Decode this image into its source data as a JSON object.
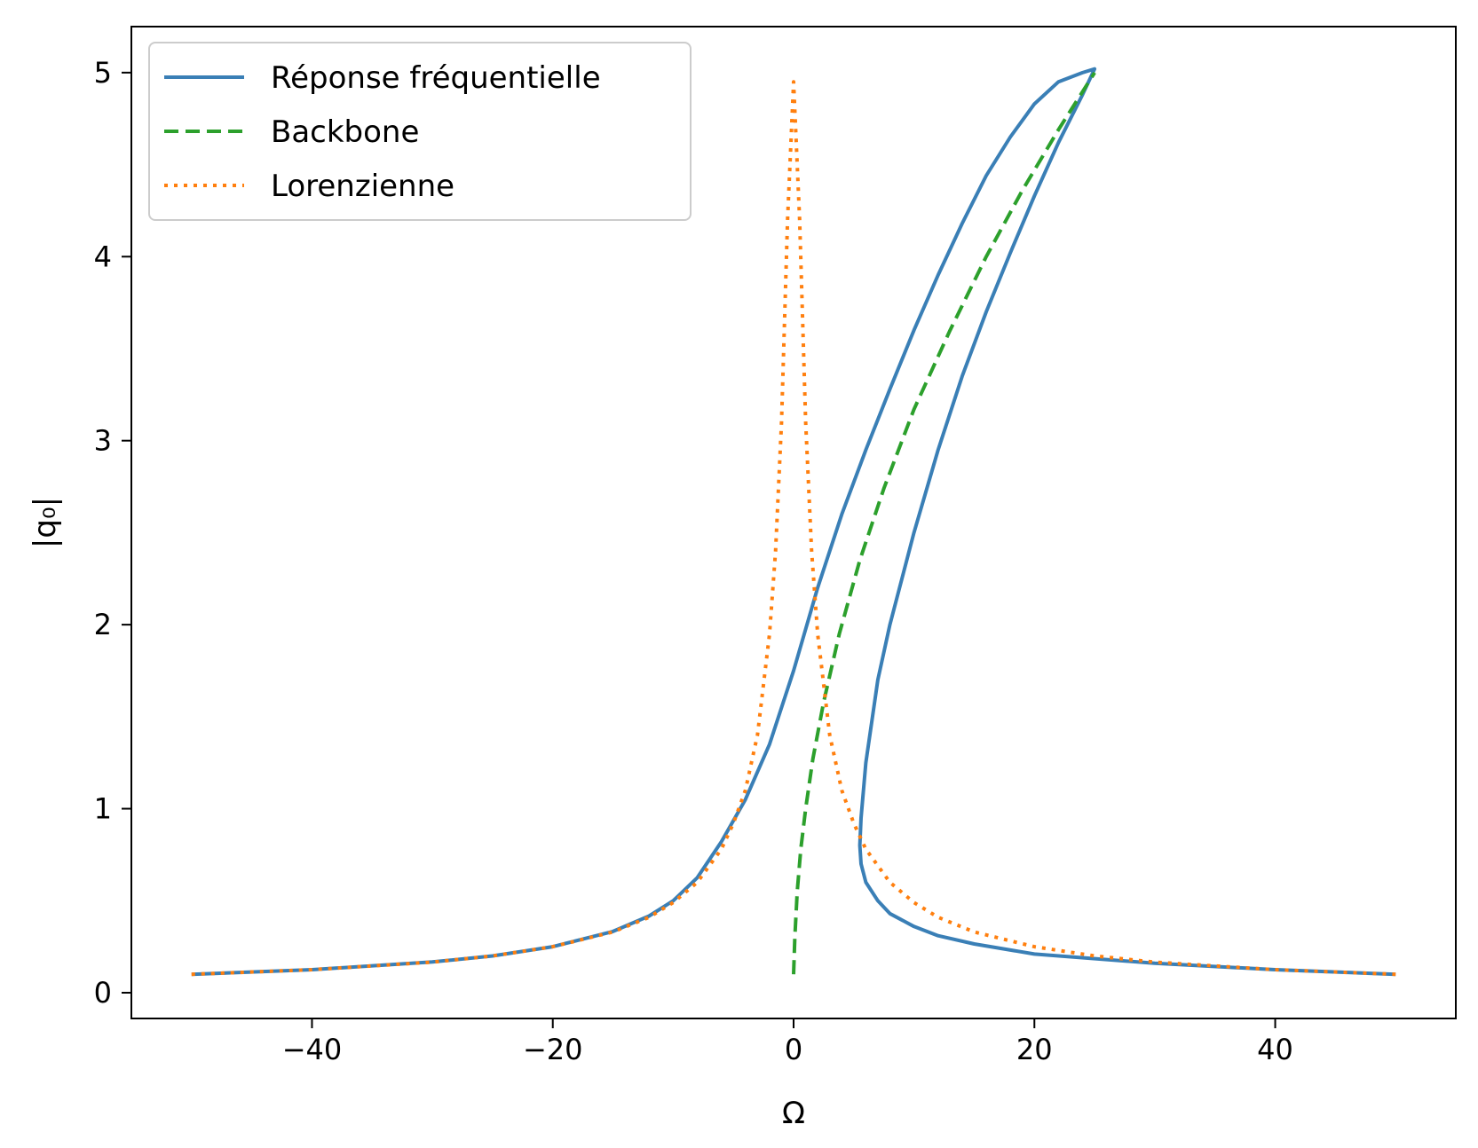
{
  "chart_data": {
    "type": "line",
    "title": "",
    "xlabel": "Ω",
    "ylabel": "|q₀|",
    "xlim": [
      -55,
      55
    ],
    "ylim": [
      -0.14,
      5.25
    ],
    "xticks": [
      -40,
      -20,
      0,
      20,
      40
    ],
    "yticks": [
      0,
      1,
      2,
      3,
      4,
      5
    ],
    "xtick_labels": [
      "−40",
      "−20",
      "0",
      "20",
      "40"
    ],
    "ytick_labels": [
      "0",
      "1",
      "2",
      "3",
      "4",
      "5"
    ],
    "grid": false,
    "legend": {
      "position": "top-left"
    },
    "series": [
      {
        "name": "Réponse fréquentielle",
        "style": "solid",
        "color": "#3a7fb6",
        "x": [
          -50,
          -40,
          -30,
          -25,
          -20,
          -15,
          -12,
          -10,
          -8,
          -6,
          -4,
          -2,
          0,
          2,
          4,
          6,
          8,
          10,
          12,
          14,
          16,
          18,
          20,
          22,
          24,
          25,
          24,
          22,
          20,
          18,
          16,
          14,
          12,
          10,
          8,
          7,
          6,
          5.6,
          5.5,
          5.6,
          6,
          7,
          8,
          10,
          12,
          15,
          20,
          30,
          40,
          50
        ],
        "y": [
          0.1,
          0.125,
          0.167,
          0.2,
          0.25,
          0.333,
          0.417,
          0.5,
          0.625,
          0.82,
          1.05,
          1.35,
          1.75,
          2.2,
          2.6,
          2.95,
          3.28,
          3.6,
          3.9,
          4.18,
          4.44,
          4.65,
          4.83,
          4.95,
          5.0,
          5.02,
          4.88,
          4.62,
          4.33,
          4.02,
          3.7,
          3.35,
          2.95,
          2.5,
          2.0,
          1.7,
          1.25,
          0.95,
          0.8,
          0.7,
          0.6,
          0.5,
          0.43,
          0.36,
          0.31,
          0.265,
          0.21,
          0.16,
          0.125,
          0.1
        ]
      },
      {
        "name": "Backbone",
        "style": "dashed",
        "color": "#2ca02c",
        "x": [
          0,
          0.1,
          0.3,
          0.6,
          1.0,
          1.6,
          2.5,
          3.8,
          5.5,
          7.5,
          10,
          13,
          16,
          19,
          22,
          25
        ],
        "y": [
          0.1,
          0.3,
          0.55,
          0.78,
          1.0,
          1.27,
          1.58,
          1.95,
          2.35,
          2.74,
          3.17,
          3.6,
          4.0,
          4.36,
          4.69,
          5.0
        ]
      },
      {
        "name": "Lorenzienne",
        "style": "dotted",
        "color": "#ff7f0e",
        "x": [
          -50,
          -40,
          -30,
          -25,
          -20,
          -15,
          -12,
          -10,
          -8,
          -6,
          -5,
          -4,
          -3,
          -2,
          -1.5,
          -1,
          -0.5,
          0,
          0.5,
          1,
          1.5,
          2,
          3,
          4,
          5,
          6,
          8,
          10,
          12,
          15,
          20,
          25,
          30,
          40,
          50
        ],
        "y": [
          0.1,
          0.125,
          0.166,
          0.2,
          0.25,
          0.33,
          0.41,
          0.49,
          0.6,
          0.78,
          0.92,
          1.1,
          1.4,
          1.95,
          2.4,
          3.1,
          4.2,
          4.95,
          4.2,
          3.1,
          2.4,
          1.95,
          1.4,
          1.1,
          0.92,
          0.78,
          0.6,
          0.49,
          0.41,
          0.33,
          0.25,
          0.2,
          0.166,
          0.125,
          0.1
        ]
      }
    ]
  }
}
